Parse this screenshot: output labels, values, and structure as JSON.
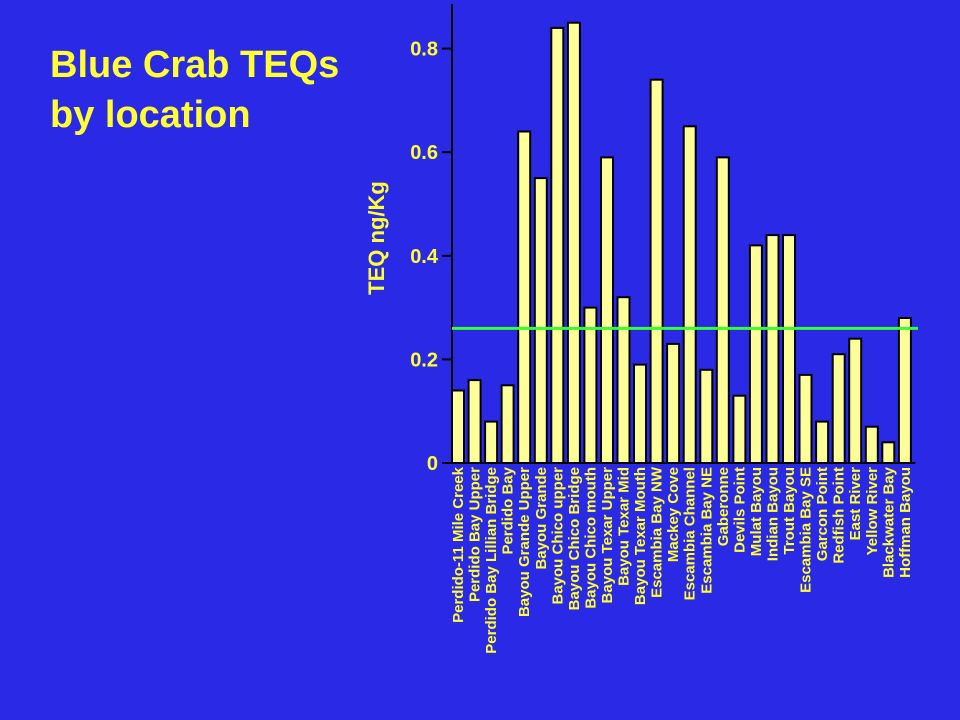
{
  "page": {
    "background": "#2a2ae6"
  },
  "chart_data": {
    "type": "bar",
    "title_lines": [
      "Blue Crab TEQs",
      "by location"
    ],
    "xlabel": "",
    "ylabel": "TEQ ng/Kg",
    "ylim": [
      0,
      0.9
    ],
    "yticks": [
      0,
      0.2,
      0.4,
      0.6,
      0.8
    ],
    "ytick_labels": [
      "0",
      "0.2",
      "0.4",
      "0.6",
      "0.8"
    ],
    "grid": false,
    "bar_color": "#ffff99",
    "reference_line": {
      "value": 0.26,
      "color": "#33ff33"
    },
    "categories": [
      "Perdido-11 Mile Creek",
      "Perdido Bay Upper",
      "Perdido Bay Lillian Bridge",
      "Perdido Bay",
      "Bayou Grande Upper",
      "Bayou Grande",
      "Bayou Chico upper",
      "Bayou Chico Bridge",
      "Bayou Chico mouth",
      "Bayou Texar Upper",
      "Bayou Texar Mid",
      "Bayou Texar Mouth",
      "Escambia Bay NW",
      "Mackey Cove",
      "Escambia Channel",
      "Escambia Bay NE",
      "Gaberonne",
      "Devils Point",
      "Mulat Bayou",
      "Indian Bayou",
      "Trout Bayou",
      "Escambia Bay SE",
      "Garcon Point",
      "Redfish Point",
      "East River",
      "Yellow River",
      "Blackwater Bay",
      "Hoffman Bayou"
    ],
    "values": [
      0.14,
      0.16,
      0.08,
      0.15,
      0.64,
      0.55,
      0.84,
      0.85,
      0.3,
      0.59,
      0.32,
      0.19,
      0.74,
      0.23,
      0.65,
      0.18,
      0.59,
      0.13,
      0.42,
      0.44,
      0.44,
      0.17,
      0.08,
      0.21,
      0.24,
      0.07,
      0.04,
      0.28
    ]
  }
}
